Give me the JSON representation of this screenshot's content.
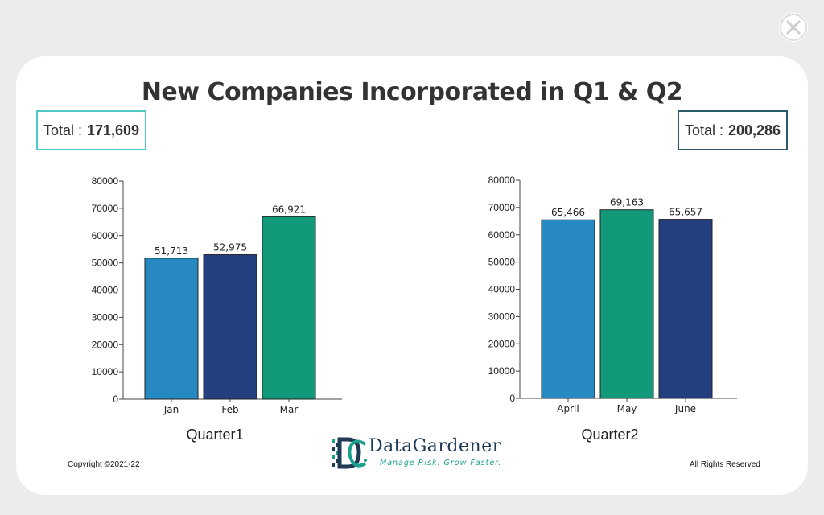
{
  "window": {
    "close_icon": "close-icon",
    "close_glyph": "✕"
  },
  "title": "New Companies Incorporated in Q1 & Q2",
  "totals": {
    "q1": {
      "label": "Total :",
      "value": "171,609"
    },
    "q2": {
      "label": "Total :",
      "value": "200,286"
    }
  },
  "colors": {
    "light_blue": "#2789c1",
    "dark_blue": "#233f80",
    "green": "#12997a",
    "total_q1_border": "#4fc9c5",
    "total_q2_border": "#2b5a6a"
  },
  "chart_data": [
    {
      "type": "bar",
      "categories": [
        "Jan",
        "Feb",
        "Mar"
      ],
      "values": [
        51713,
        52975,
        66921
      ],
      "data_labels": [
        "51,713",
        "52,975",
        "66,921"
      ],
      "bar_colors": [
        "#2789c1",
        "#233f80",
        "#12997a"
      ],
      "title": "",
      "xlabel": "Quarter1",
      "ylabel": "",
      "ylim": [
        0,
        80000
      ],
      "yticks": [
        0,
        10000,
        20000,
        30000,
        40000,
        50000,
        60000,
        70000,
        80000
      ],
      "grid": false,
      "legend": "none"
    },
    {
      "type": "bar",
      "categories": [
        "April",
        "May",
        "June"
      ],
      "values": [
        65466,
        69163,
        65657
      ],
      "data_labels": [
        "65,466",
        "69,163",
        "65,657"
      ],
      "bar_colors": [
        "#2789c1",
        "#12997a",
        "#233f80"
      ],
      "title": "",
      "xlabel": "Quarter2",
      "ylabel": "",
      "ylim": [
        0,
        80000
      ],
      "yticks": [
        0,
        10000,
        20000,
        30000,
        40000,
        50000,
        60000,
        70000,
        80000
      ],
      "grid": false,
      "legend": "none"
    }
  ],
  "footer": {
    "copyright": "Copyright ©2021-22",
    "rights": "All Rights Reserved",
    "logo_name": "DataGardener",
    "logo_tagline": "Manage Risk. Grow Faster."
  }
}
